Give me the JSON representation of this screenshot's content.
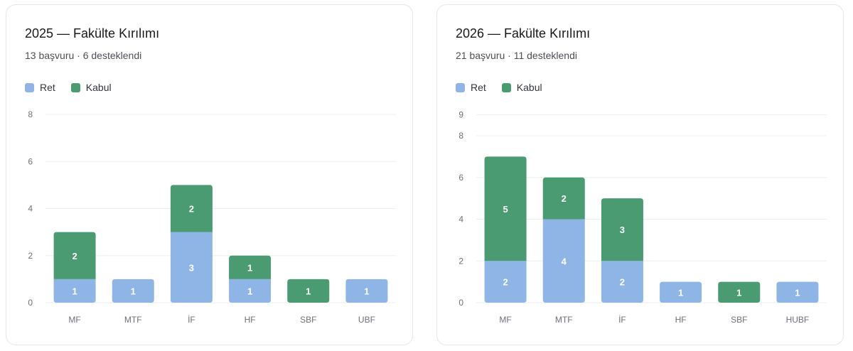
{
  "colors": {
    "ret": "#8fb4e6",
    "kabul": "#4a9a72",
    "grid": "#eceef1",
    "axis_text": "#6b7078"
  },
  "cards": [
    {
      "title": "2025 — Fakülte Kırılımı",
      "subtitle": "13 başvuru · 6 desteklendi"
    },
    {
      "title": "2026 — Fakülte Kırılımı",
      "subtitle": "21 başvuru · 11 desteklendi"
    }
  ],
  "chart_data": [
    {
      "type": "bar",
      "stacked": true,
      "title": "2025 — Fakülte Kırılımı",
      "categories": [
        "MF",
        "MTF",
        "İF",
        "HF",
        "SBF",
        "UBF"
      ],
      "series": [
        {
          "name": "Ret",
          "color": "#8fb4e6",
          "values": [
            1,
            1,
            3,
            1,
            0,
            1
          ]
        },
        {
          "name": "Kabul",
          "color": "#4a9a72",
          "values": [
            2,
            0,
            2,
            1,
            1,
            0
          ]
        }
      ],
      "yticks": [
        0,
        2,
        4,
        6,
        8
      ],
      "ylim": [
        0,
        8
      ],
      "grid": true,
      "legend_position": "top-left"
    },
    {
      "type": "bar",
      "stacked": true,
      "title": "2026 — Fakülte Kırılımı",
      "categories": [
        "MF",
        "MTF",
        "İF",
        "HF",
        "SBF",
        "HUBF"
      ],
      "series": [
        {
          "name": "Ret",
          "color": "#8fb4e6",
          "values": [
            2,
            4,
            2,
            1,
            0,
            1
          ]
        },
        {
          "name": "Kabul",
          "color": "#4a9a72",
          "values": [
            5,
            2,
            3,
            0,
            1,
            0
          ]
        }
      ],
      "yticks": [
        0,
        2,
        4,
        6,
        8,
        9
      ],
      "ylim": [
        0,
        9
      ],
      "grid": true,
      "legend_position": "top-left"
    }
  ]
}
